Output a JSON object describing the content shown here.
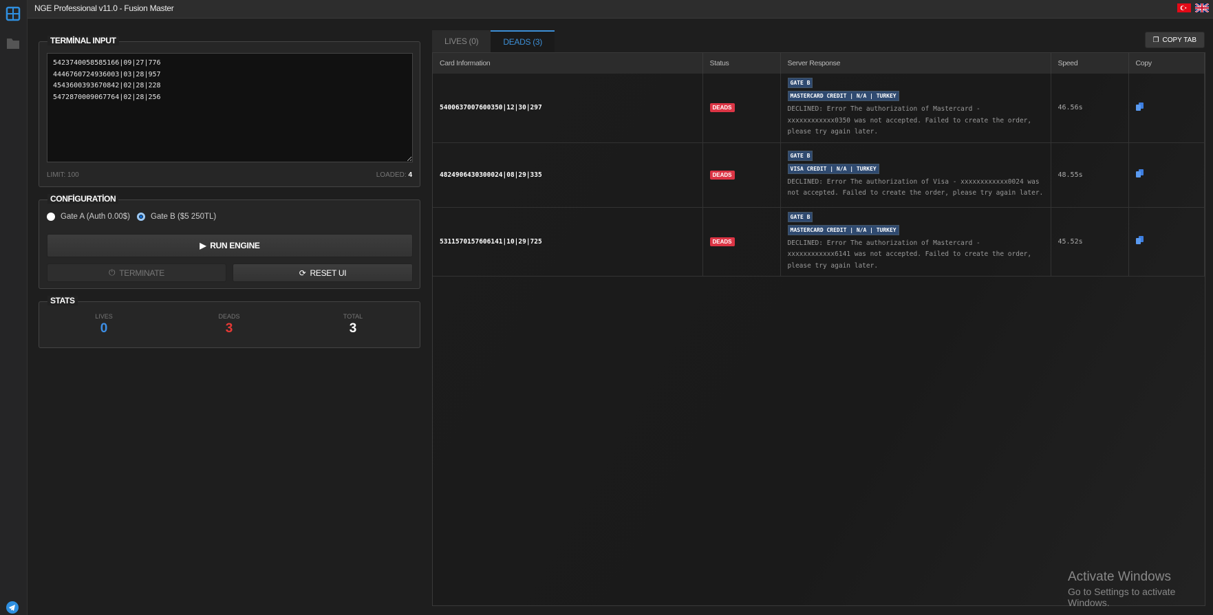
{
  "app": {
    "title": "NGE Professional v11.0 - Fusion Master",
    "flags": [
      "turkey-flag",
      "uk-flag"
    ]
  },
  "sidebar": {
    "items": [
      {
        "icon": "dashboard-icon",
        "active": true
      },
      {
        "icon": "folder-icon"
      }
    ],
    "bottom_icon": "telegram-icon"
  },
  "terminal": {
    "legend": "TERMİNAL INPUT",
    "value": "5423740058585166|09|27|776\n4446760724936003|03|28|957\n4543600393670842|02|28|228\n5472870009067764|02|28|256",
    "limit": "LIMIT: 100",
    "loaded_label": "LOADED:",
    "loaded_count": "4"
  },
  "config": {
    "legend": "CONFİGURATİON",
    "gate_a": "Gate A (Auth 0.00$)",
    "gate_b": "Gate B ($5 250TL)",
    "selected": "Gate B",
    "run": "RUN ENGINE",
    "terminate": "TERMINATE",
    "reset": "RESET UI"
  },
  "stats": {
    "legend": "STATS",
    "lives_label": "LIVES",
    "lives": "0",
    "deads_label": "DEADS",
    "deads": "3",
    "total_label": "TOTAL",
    "total": "3",
    "colors": {
      "lives": "#3d8fe6",
      "deads": "#e53935",
      "total": "#ffffff"
    }
  },
  "tabs": [
    {
      "label": "LIVES (0)"
    },
    {
      "label": "DEADS (3)",
      "active": true
    }
  ],
  "copy_tab": "COPY TAB",
  "table": {
    "headers": [
      "Card Information",
      "Status",
      "Server Response",
      "Speed",
      "Copy"
    ],
    "rows": [
      {
        "card": "5400637007600350|12|30|297",
        "status": "DEADS",
        "gate": "GATE B",
        "info": "MASTERCARD CREDIT | N/A | TURKEY",
        "msg": "DECLINED: Error The authorization of Mastercard - xxxxxxxxxxxx0350 was not accepted. Failed to create the order, please try again later.",
        "speed": "46.56s"
      },
      {
        "card": "4824906430300024|08|29|335",
        "status": "DEADS",
        "gate": "GATE B",
        "info": "VISA CREDIT | N/A | TURKEY",
        "msg": "DECLINED: Error The authorization of Visa - xxxxxxxxxxxx0024 was not accepted. Failed to create the order, please try again later.",
        "speed": "48.55s"
      },
      {
        "card": "5311570157606141|10|29|725",
        "status": "DEADS",
        "gate": "GATE B",
        "info": "MASTERCARD CREDIT | N/A | TURKEY",
        "msg": "DECLINED: Error The authorization of Mastercard - xxxxxxxxxxxx6141 was not accepted. Failed to create the order, please try again later.",
        "speed": "45.52s"
      }
    ]
  },
  "watermark": {
    "line1": "Activate Windows",
    "line2": "Go to Settings to activate Windows."
  }
}
